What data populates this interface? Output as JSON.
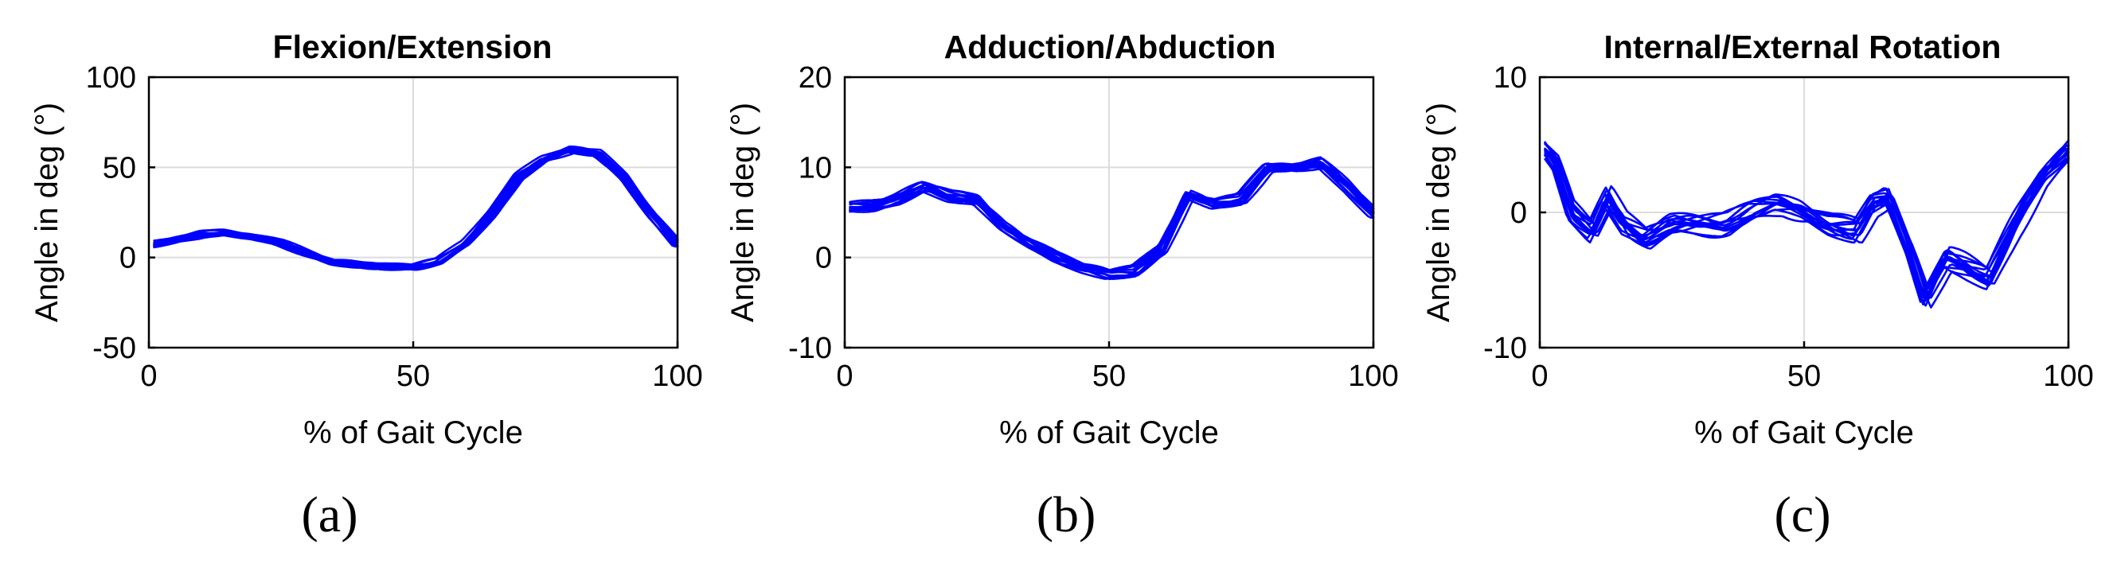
{
  "chart_data": [
    {
      "type": "line",
      "panel": "(a)",
      "title": "Flexion/Extension",
      "xlabel": "% of Gait Cycle",
      "ylabel": "Angle in deg (°)",
      "xlim": [
        0,
        100
      ],
      "ylim": [
        -50,
        100
      ],
      "xticks": [
        0,
        50,
        100
      ],
      "yticks": [
        -50,
        0,
        50,
        100
      ],
      "xtick_labels": [
        "0",
        "50",
        "100"
      ],
      "ytick_labels": [
        "-50",
        "0",
        "50",
        "100"
      ],
      "grid": true,
      "color": "#0000ff",
      "n_series": 14,
      "mean_curve": {
        "x": [
          0,
          5,
          10,
          15,
          20,
          25,
          30,
          35,
          40,
          45,
          50,
          55,
          60,
          65,
          70,
          75,
          80,
          85,
          90,
          95,
          100
        ],
        "y": [
          7,
          10,
          13,
          14,
          12,
          8,
          3,
          -2,
          -4,
          -5,
          -5,
          -2,
          8,
          25,
          45,
          55,
          60,
          58,
          45,
          25,
          8
        ]
      },
      "spread": 2.5
    },
    {
      "type": "line",
      "panel": "(b)",
      "title": "Adduction/Abduction",
      "xlabel": "% of Gait Cycle",
      "ylabel": "Angle in deg (°)",
      "xlim": [
        0,
        100
      ],
      "ylim": [
        -10,
        20
      ],
      "xticks": [
        0,
        50,
        100
      ],
      "yticks": [
        -10,
        0,
        10,
        20
      ],
      "xtick_labels": [
        "0",
        "50",
        "100"
      ],
      "ytick_labels": [
        "-10",
        "0",
        "10",
        "20"
      ],
      "grid": true,
      "color": "#0000ff",
      "n_series": 14,
      "mean_curve": {
        "x": [
          0,
          5,
          10,
          15,
          20,
          25,
          30,
          35,
          40,
          45,
          50,
          55,
          60,
          65,
          70,
          75,
          80,
          85,
          90,
          95,
          100
        ],
        "y": [
          5.5,
          5.8,
          6.5,
          7.8,
          6.8,
          6.5,
          3.5,
          1.5,
          0,
          -1,
          -1.8,
          -1.5,
          1,
          7,
          6,
          6.5,
          10,
          10,
          10.5,
          8,
          5
        ]
      },
      "spread": 0.8
    },
    {
      "type": "line",
      "panel": "(c)",
      "title": "Internal/External Rotation",
      "xlabel": "% of Gait Cycle",
      "ylabel": "Angle in deg (°)",
      "xlim": [
        0,
        100
      ],
      "ylim": [
        -10,
        10
      ],
      "xticks": [
        0,
        50,
        100
      ],
      "yticks": [
        -10,
        0,
        10
      ],
      "xtick_labels": [
        "0",
        "50",
        "100"
      ],
      "ytick_labels": [
        "-10",
        "0",
        "10"
      ],
      "grid": true,
      "color": "#0000ff",
      "n_series": 14,
      "mean_curve": {
        "x": [
          0,
          3,
          6,
          10,
          13,
          16,
          20,
          25,
          30,
          35,
          40,
          45,
          50,
          55,
          60,
          63,
          66,
          70,
          73,
          77,
          80,
          85,
          90,
          95,
          100
        ],
        "y": [
          5,
          3.5,
          0,
          -1.5,
          1,
          -1,
          -2,
          -1,
          -1,
          -1,
          0,
          0.5,
          0,
          -1,
          -1.5,
          0.5,
          1,
          -3,
          -6.5,
          -3.5,
          -4,
          -5,
          -1,
          2.5,
          4.5
        ]
      },
      "spread": 1.0
    }
  ]
}
